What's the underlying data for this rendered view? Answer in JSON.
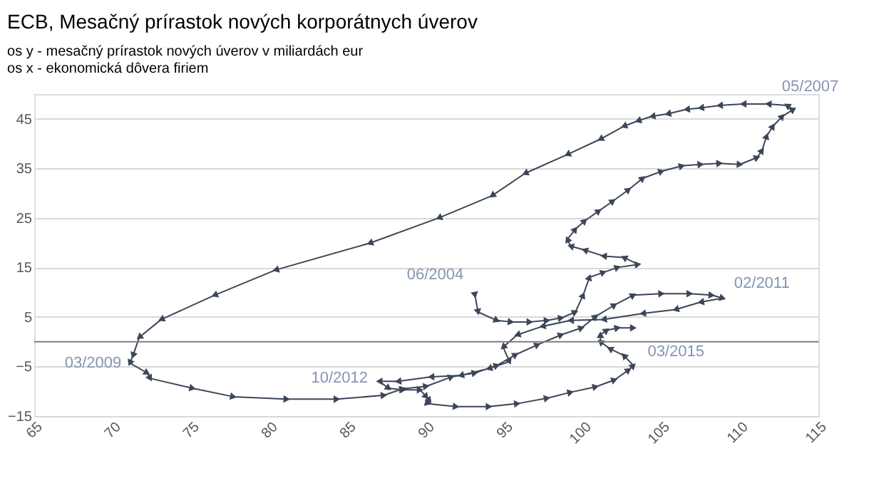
{
  "chart_data": {
    "type": "line",
    "title": "ECB, Mesačný prírastok nových korporátnych úverov",
    "subtitle": [
      "os y - mesačný prírastok nových úverov v miliardách eur",
      "os x - ekonomická dôvera firiem"
    ],
    "series": [
      {
        "color": "#3b4658",
        "x": [
          93.1,
          93.3,
          94.5,
          95.4,
          96.6,
          97.7,
          98.6,
          99.5,
          100.0,
          100.4,
          101.3,
          102.2,
          103.5,
          102.6,
          101.3,
          100.1,
          99.2,
          99.0,
          99.5,
          100.1,
          101.0,
          101.9,
          102.9,
          103.8,
          105.0,
          106.3,
          107.5,
          108.7,
          110.0,
          111.1,
          111.4,
          111.7,
          112.1,
          112.7,
          113.4,
          113.0,
          111.8,
          110.2,
          108.7,
          107.5,
          106.6,
          105.4,
          104.4,
          103.5,
          102.6,
          101.1,
          99.0,
          96.3,
          94.2,
          90.8,
          86.4,
          80.4,
          76.5,
          73.1,
          71.7,
          71.3,
          71.1,
          72.2,
          72.4,
          75.1,
          77.7,
          81.1,
          84.3,
          87.3,
          88.5,
          90.0,
          91.6,
          93.1,
          94.5,
          95.7,
          97.1,
          98.6,
          99.9,
          100.8,
          102.0,
          103.2,
          105.0,
          106.8,
          108.2,
          108.9,
          107.5,
          105.9,
          103.8,
          101.3,
          99.2,
          97.4,
          95.8,
          94.9,
          95.3,
          94.0,
          92.2,
          90.3,
          88.2,
          87.0,
          87.6,
          88.5,
          89.6,
          90.0,
          90.2,
          90.0,
          91.9,
          94.0,
          95.8,
          97.7,
          99.2,
          100.8,
          102.0,
          102.9,
          103.2,
          102.6,
          101.7,
          101.1,
          101.1,
          101.5,
          102.2,
          103.2
        ],
        "values": [
          9.4,
          6.0,
          4.3,
          4.0,
          4.0,
          4.3,
          4.8,
          6.0,
          9.4,
          13.0,
          14.0,
          15.0,
          15.6,
          17.0,
          17.3,
          18.5,
          19.3,
          20.7,
          22.7,
          24.4,
          26.4,
          28.4,
          30.7,
          33.0,
          34.4,
          35.5,
          35.8,
          36.0,
          35.8,
          37.2,
          38.6,
          41.5,
          43.5,
          45.5,
          46.9,
          47.7,
          48.0,
          48.0,
          47.7,
          47.2,
          46.9,
          46.0,
          45.5,
          44.6,
          43.5,
          40.9,
          37.8,
          34.0,
          29.5,
          25.0,
          19.9,
          14.5,
          9.4,
          4.5,
          0.9,
          -2.8,
          -4.3,
          -6.3,
          -7.4,
          -9.4,
          -11.1,
          -11.6,
          -11.6,
          -10.8,
          -9.5,
          -9.0,
          -7.1,
          -6.3,
          -4.8,
          -2.6,
          -0.6,
          1.4,
          2.8,
          5.1,
          7.4,
          9.4,
          9.7,
          9.7,
          9.4,
          8.8,
          8.0,
          6.5,
          5.7,
          4.5,
          4.3,
          3.1,
          1.4,
          -1.1,
          -4.0,
          -5.4,
          -6.8,
          -7.1,
          -8.0,
          -8.0,
          -9.4,
          -9.7,
          -9.7,
          -11.1,
          -11.9,
          -12.5,
          -13.1,
          -13.1,
          -12.5,
          -11.4,
          -10.2,
          -9.1,
          -7.7,
          -5.7,
          -4.8,
          -2.8,
          -1.4,
          0.0,
          1.4,
          2.3,
          2.8,
          2.8
        ]
      }
    ],
    "marker": "triangle",
    "xlim": [
      65,
      115
    ],
    "xticks": [
      65,
      70,
      75,
      80,
      85,
      90,
      95,
      100,
      105,
      110,
      115
    ],
    "ylim": [
      -15,
      50
    ],
    "yticks": [
      -15,
      -5,
      5,
      15,
      25,
      35,
      45
    ],
    "grid": "y",
    "ref_lines": [
      {
        "axis": "y",
        "value": 0,
        "color": "#7f7f7f"
      }
    ],
    "annotations": [
      {
        "text": "06/2004",
        "x": 93.1,
        "y": 9.4
      },
      {
        "text": "05/2007",
        "x": 113.4,
        "y": 46.9
      },
      {
        "text": "03/2009",
        "x": 71.1,
        "y": -4.3
      },
      {
        "text": "02/2011",
        "x": 108.9,
        "y": 8.8
      },
      {
        "text": "10/2012",
        "x": 87.0,
        "y": -8.0
      },
      {
        "text": "03/2015",
        "x": 103.2,
        "y": 2.8
      }
    ]
  }
}
